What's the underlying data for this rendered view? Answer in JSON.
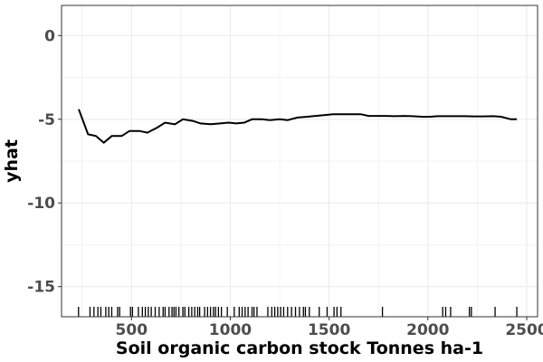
{
  "chart_data": {
    "type": "line",
    "title": "",
    "xlabel": "Soil organic carbon stock Tonnes ha-1",
    "ylabel": "yhat",
    "xlim": [
      146,
      2555
    ],
    "ylim": [
      -16.8,
      1.8
    ],
    "x_ticks": [
      500,
      1000,
      1500,
      2000,
      2500
    ],
    "y_ticks": [
      0,
      -5,
      -10,
      -15
    ],
    "x_tick_labels": [
      "500",
      "1000",
      "1500",
      "2000",
      "2500"
    ],
    "y_tick_labels": [
      "0",
      "-5",
      "-10",
      "-15"
    ],
    "grid": true,
    "legend": "none",
    "colors": {
      "line": "#000000",
      "grid": "#ebebeb",
      "panel_border": "#333333",
      "rug": "#000000"
    },
    "series": [
      {
        "x": [
          233,
          280,
          320,
          360,
          400,
          450,
          490,
          540,
          580,
          630,
          670,
          720,
          760,
          810,
          850,
          900,
          950,
          990,
          1030,
          1070,
          1110,
          1160,
          1200,
          1250,
          1290,
          1340,
          1390,
          1430,
          1480,
          1520,
          1570,
          1610,
          1660,
          1700,
          1740,
          1790,
          1830,
          1880,
          1920,
          1970,
          2010,
          2050,
          2100,
          2140,
          2190,
          2230,
          2280,
          2330,
          2370,
          2420,
          2450
        ],
        "y": [
          -4.4,
          -5.9,
          -6.0,
          -6.4,
          -6.0,
          -6.0,
          -5.7,
          -5.7,
          -5.8,
          -5.5,
          -5.2,
          -5.3,
          -5.0,
          -5.1,
          -5.25,
          -5.3,
          -5.25,
          -5.2,
          -5.25,
          -5.2,
          -5.0,
          -5.0,
          -5.05,
          -5.0,
          -5.05,
          -4.9,
          -4.85,
          -4.8,
          -4.75,
          -4.7,
          -4.7,
          -4.7,
          -4.7,
          -4.8,
          -4.8,
          -4.8,
          -4.82,
          -4.8,
          -4.82,
          -4.85,
          -4.85,
          -4.82,
          -4.82,
          -4.82,
          -4.82,
          -4.83,
          -4.83,
          -4.82,
          -4.85,
          -5.0,
          -5.0
        ]
      }
    ],
    "rug": [
      232,
      290,
      310,
      330,
      345,
      370,
      385,
      400,
      430,
      440,
      495,
      505,
      535,
      555,
      570,
      585,
      600,
      620,
      640,
      660,
      670,
      690,
      705,
      715,
      725,
      740,
      760,
      770,
      790,
      805,
      820,
      835,
      845,
      870,
      885,
      900,
      915,
      925,
      940,
      955,
      985,
      1020,
      1045,
      1060,
      1075,
      1090,
      1110,
      1120,
      1135,
      1190,
      1210,
      1225,
      1240,
      1255,
      1270,
      1290,
      1310,
      1330,
      1350,
      1370,
      1380,
      1400,
      1450,
      1490,
      1525,
      1540,
      1560,
      1770,
      2075,
      2090,
      2115,
      2210,
      2220,
      2340,
      2450
    ]
  }
}
